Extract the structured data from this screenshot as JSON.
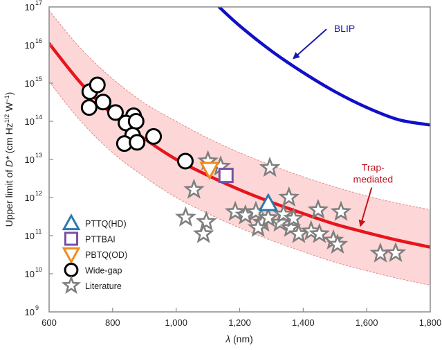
{
  "chart_data": {
    "type": "scatter",
    "title": "",
    "xlabel": "λ (nm)",
    "ylabel": "Upper limit of D* (cm Hz^1/2 W^-1)",
    "ylabel_parts": {
      "prefix": "Upper limit of ",
      "italic": "D*",
      "mid": " (cm Hz",
      "sup1": "1/2",
      "mid2": " W",
      "sup2": "−1",
      "suffix": ")"
    },
    "xlabel_parts": {
      "italic": "λ",
      "suffix": " (nm)"
    },
    "xlim": [
      600,
      1800
    ],
    "ylim": [
      1000000000.0,
      1e+17
    ],
    "yscale": "log",
    "grid": false,
    "x_ticks": [
      600,
      800,
      1000,
      1200,
      1400,
      1600,
      1800
    ],
    "x_tick_labels": [
      "600",
      "800",
      "1,000",
      "1,200",
      "1,400",
      "1,600",
      "1,800"
    ],
    "y_ticks_exp": [
      9,
      10,
      11,
      12,
      13,
      14,
      15,
      16,
      17
    ],
    "legend_position": "lower-left",
    "legend": [
      {
        "label": "PTTQ(HD)",
        "marker": "triangle-up",
        "color": "#2a7ab0"
      },
      {
        "label": "PTTBAI",
        "marker": "square",
        "color": "#7b4fa6"
      },
      {
        "label": "PBTQ(OD)",
        "marker": "triangle-down",
        "color": "#ef8c1d"
      },
      {
        "label": "Wide-gap",
        "marker": "circle",
        "color": "#000000"
      },
      {
        "label": "Literature",
        "marker": "star",
        "color": "#7f7f7f"
      }
    ],
    "curves": [
      {
        "name": "BLIP",
        "color": "#1010c8",
        "points": [
          [
            1135,
            1e+17
          ],
          [
            1200,
            3.2e+16
          ],
          [
            1300,
            7000000000000000.0
          ],
          [
            1400,
            1900000000000000.0
          ],
          [
            1500,
            600000000000000.0
          ],
          [
            1600,
            230000000000000.0
          ],
          [
            1700,
            110000000000000.0
          ],
          [
            1800,
            80000000000000.0
          ]
        ]
      },
      {
        "name": "Trap-mediated",
        "color": "#e8141c",
        "points": [
          [
            600,
            1.1e+16
          ],
          [
            700,
            1000000000000000.0
          ],
          [
            800,
            150000000000000.0
          ],
          [
            900,
            35000000000000.0
          ],
          [
            1000,
            10000000000000.0
          ],
          [
            1100,
            3800000000000.0
          ],
          [
            1200,
            1600000000000.0
          ],
          [
            1300,
            750000000000.0
          ],
          [
            1400,
            380000000000.0
          ],
          [
            1500,
            200000000000.0
          ],
          [
            1600,
            120000000000.0
          ],
          [
            1700,
            75000000000.0
          ],
          [
            1800,
            50000000000.0
          ]
        ]
      }
    ],
    "band": {
      "name": "Trap-mediated range",
      "color": "#fdd7d7",
      "edge_color": "#e08a8a",
      "upper": [
        [
          600,
          8e+16
        ],
        [
          700,
          8000000000000000.0
        ],
        [
          800,
          1300000000000000.0
        ],
        [
          900,
          300000000000000.0
        ],
        [
          1000,
          100000000000000.0
        ],
        [
          1100,
          36000000000000.0
        ],
        [
          1200,
          15000000000000.0
        ],
        [
          1300,
          7000000000000.0
        ],
        [
          1400,
          3500000000000.0
        ],
        [
          1500,
          1900000000000.0
        ],
        [
          1600,
          1100000000000.0
        ],
        [
          1700,
          700000000000.0
        ],
        [
          1800,
          480000000000.0
        ]
      ],
      "lower": [
        [
          600,
          1100000000000000.0
        ],
        [
          700,
          100000000000000.0
        ],
        [
          800,
          15000000000000.0
        ],
        [
          900,
          3500000000000.0
        ],
        [
          1000,
          1000000000000.0
        ],
        [
          1100,
          380000000000.0
        ],
        [
          1200,
          160000000000.0
        ],
        [
          1300,
          75000000000.0
        ],
        [
          1400,
          38000000000.0
        ],
        [
          1500,
          20000000000.0
        ],
        [
          1600,
          12000000000.0
        ],
        [
          1700,
          7500000000.0
        ],
        [
          1800,
          5000000000.0
        ]
      ]
    },
    "annotations": [
      {
        "text": "BLIP",
        "color": "#1a1aa8",
        "x": 1530,
        "y": 2.2e+16,
        "arrow_to": [
          1370,
          4500000000000000.0
        ]
      },
      {
        "text": "Trap-",
        "text2": "mediated",
        "color": "#c0141c",
        "x": 1620,
        "y": 5000000000000.0,
        "arrow_to": [
          1600,
          120000000000.0
        ]
      }
    ],
    "series": [
      {
        "name": "PTTQ(HD)",
        "marker": "triangle-up",
        "color": "#2a7ab0",
        "points": [
          [
            1290,
            700000000000.0
          ]
        ]
      },
      {
        "name": "PTTBAI",
        "marker": "square",
        "color": "#7b4fa6",
        "points": [
          [
            1157,
            3800000000000.0
          ]
        ]
      },
      {
        "name": "PBTQ(OD)",
        "marker": "triangle-down",
        "color": "#ef8c1d",
        "points": [
          [
            1105,
            5400000000000.0
          ]
        ]
      },
      {
        "name": "Wide-gap",
        "marker": "circle",
        "color": "#000000",
        "points": [
          [
            728,
            600000000000000.0
          ],
          [
            752,
            900000000000000.0
          ],
          [
            726,
            230000000000000.0
          ],
          [
            770,
            320000000000000.0
          ],
          [
            809,
            170000000000000.0
          ],
          [
            866,
            140000000000000.0
          ],
          [
            842,
            90000000000000.0
          ],
          [
            874,
            100000000000000.0
          ],
          [
            863,
            43000000000000.0
          ],
          [
            837,
            26000000000000.0
          ],
          [
            877,
            28000000000000.0
          ],
          [
            929,
            40000000000000.0
          ],
          [
            1029,
            9000000000000.0
          ]
        ]
      },
      {
        "name": "Literature",
        "marker": "star",
        "color": "#7f7f7f",
        "points": [
          [
            1100,
            9000000000000.0
          ],
          [
            1140,
            6500000000000.0
          ],
          [
            1056,
            1600000000000.0
          ],
          [
            1030,
            300000000000.0
          ],
          [
            1095,
            230000000000.0
          ],
          [
            1086,
            110000000000.0
          ],
          [
            1295,
            6000000000000.0
          ],
          [
            1355,
            1000000000000.0
          ],
          [
            1447,
            470000000000.0
          ],
          [
            1519,
            420000000000.0
          ],
          [
            1186,
            420000000000.0
          ],
          [
            1218,
            340000000000.0
          ],
          [
            1251,
            420000000000.0
          ],
          [
            1273,
            220000000000.0
          ],
          [
            1327,
            220000000000.0
          ],
          [
            1360,
            160000000000.0
          ],
          [
            1386,
            110000000000.0
          ],
          [
            1425,
            130000000000.0
          ],
          [
            1451,
            110000000000.0
          ],
          [
            1495,
            75000000000.0
          ],
          [
            1508,
            58000000000.0
          ],
          [
            1643,
            34000000000.0
          ],
          [
            1691,
            35000000000.0
          ],
          [
            1338,
            360000000000.0
          ],
          [
            1258,
            160000000000.0
          ],
          [
            1290,
            290000000000.0
          ],
          [
            1370,
            280000000000.0
          ]
        ]
      }
    ]
  }
}
